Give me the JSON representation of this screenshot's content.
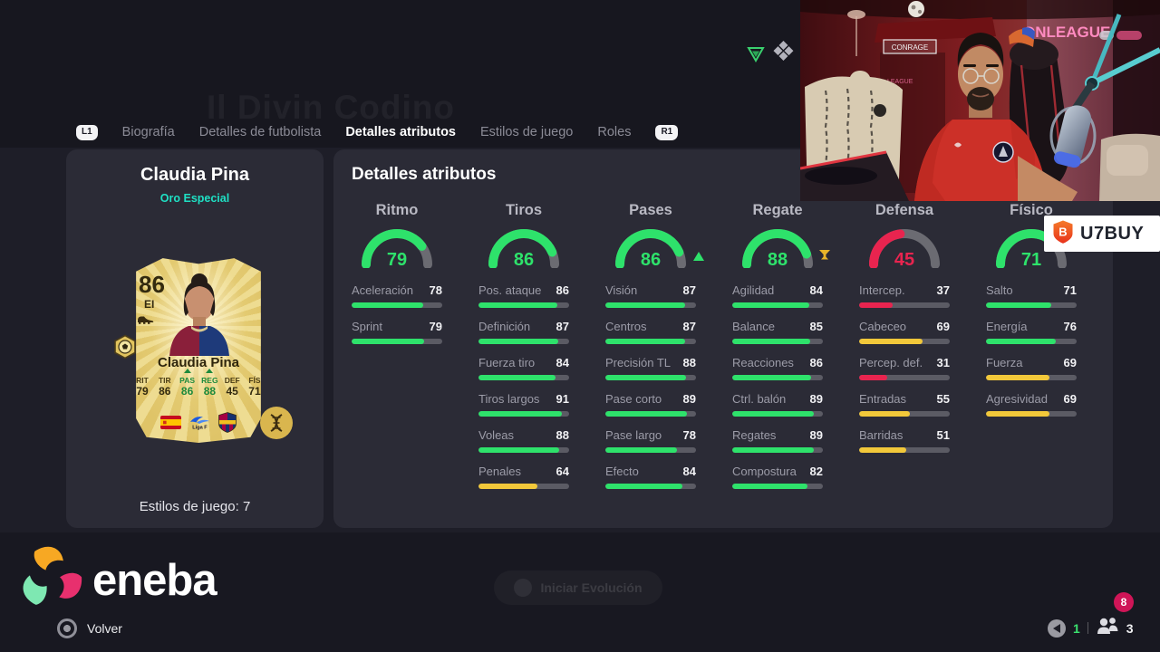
{
  "background": {
    "watermark": "Il Divin Codino",
    "evolve_label": "Iniciar Evolución"
  },
  "colors": {
    "positive": "#2ee26b",
    "neutral": "#f2c83a",
    "negative": "#e8244f",
    "gauge_track": "#6b6b72",
    "rarity": "#1fe0c4",
    "accent_gold": "#e8b52a",
    "badge_pink": "#cf1557"
  },
  "tabs": {
    "l1": "L1",
    "r1": "R1",
    "items": [
      {
        "label": "Biografía",
        "active": false
      },
      {
        "label": "Detalles de futbolista",
        "active": false
      },
      {
        "label": "Detalles atributos",
        "active": true
      },
      {
        "label": "Estilos de juego",
        "active": false
      },
      {
        "label": "Roles",
        "active": false
      }
    ]
  },
  "player_panel": {
    "name": "Claudia Pina",
    "rarity": "Oro Especial",
    "playstyles": "Estilos de juego: 7",
    "card": {
      "rating": "86",
      "position": "EI",
      "name": "Claudia Pina",
      "stats": [
        {
          "label": "RIT",
          "value": "79",
          "boost": false
        },
        {
          "label": "TIR",
          "value": "86",
          "boost": false
        },
        {
          "label": "PAS",
          "value": "86",
          "boost": true
        },
        {
          "label": "REG",
          "value": "88",
          "boost": true
        },
        {
          "label": "DEF",
          "value": "45",
          "boost": false
        },
        {
          "label": "FÍS",
          "value": "71",
          "boost": false
        }
      ],
      "icons": {
        "nation": "spain-flag",
        "league": "liga-f",
        "club": "fc-barcelona"
      },
      "league_label": "Liga F"
    }
  },
  "attributes_panel": {
    "title": "Detalles atributos",
    "groups": [
      {
        "name": "Ritmo",
        "value": 79,
        "indicator": null,
        "stats": [
          {
            "label": "Aceleración",
            "value": 78
          },
          {
            "label": "Sprint",
            "value": 79
          }
        ]
      },
      {
        "name": "Tiros",
        "value": 86,
        "indicator": null,
        "stats": [
          {
            "label": "Pos. ataque",
            "value": 86
          },
          {
            "label": "Definición",
            "value": 87
          },
          {
            "label": "Fuerza tiro",
            "value": 84
          },
          {
            "label": "Tiros largos",
            "value": 91
          },
          {
            "label": "Voleas",
            "value": 88
          },
          {
            "label": "Penales",
            "value": 64
          }
        ]
      },
      {
        "name": "Pases",
        "value": 86,
        "indicator": "boost-up",
        "stats": [
          {
            "label": "Visión",
            "value": 87
          },
          {
            "label": "Centros",
            "value": 87
          },
          {
            "label": "Precisión TL",
            "value": 88
          },
          {
            "label": "Pase corto",
            "value": 89
          },
          {
            "label": "Pase largo",
            "value": 78
          },
          {
            "label": "Efecto",
            "value": 84
          }
        ]
      },
      {
        "name": "Regate",
        "value": 88,
        "indicator": "trained-gold",
        "stats": [
          {
            "label": "Agilidad",
            "value": 84
          },
          {
            "label": "Balance",
            "value": 85
          },
          {
            "label": "Reacciones",
            "value": 86
          },
          {
            "label": "Ctrl. balón",
            "value": 89
          },
          {
            "label": "Regates",
            "value": 89
          },
          {
            "label": "Compostura",
            "value": 82
          }
        ]
      },
      {
        "name": "Defensa",
        "value": 45,
        "indicator": null,
        "stats": [
          {
            "label": "Intercep.",
            "value": 37
          },
          {
            "label": "Cabeceo",
            "value": 69
          },
          {
            "label": "Percep. def.",
            "value": 31
          },
          {
            "label": "Entradas",
            "value": 55
          },
          {
            "label": "Barridas",
            "value": 51
          }
        ]
      },
      {
        "name": "Físico",
        "value": 71,
        "indicator": null,
        "stats": [
          {
            "label": "Salto",
            "value": 71
          },
          {
            "label": "Energía",
            "value": 76
          },
          {
            "label": "Fuerza",
            "value": 69
          },
          {
            "label": "Agresividad",
            "value": 69
          }
        ]
      }
    ]
  },
  "overlay": {
    "webcam": {
      "neon_main": "ONLEAGUE",
      "plate": "CONRAGE",
      "neon_small": "LEAGUE"
    },
    "u7buy_label": "U7BUY",
    "eneba_label": "eneba",
    "back_label": "Volver",
    "hud": {
      "viewers": "1",
      "friends": "3",
      "notifications": "8"
    }
  }
}
